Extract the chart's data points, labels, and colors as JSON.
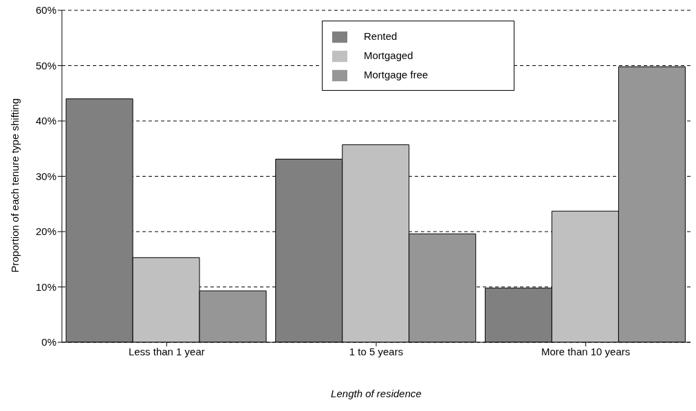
{
  "chart_data": {
    "type": "bar",
    "xlabel": "Length of residence",
    "ylabel": "Proportion of each tenure type shifting",
    "categories": [
      "Less than 1 year",
      "1 to 5 years",
      "More than 10 years"
    ],
    "series": [
      {
        "name": "Rented",
        "color": "#808080",
        "values": [
          44,
          33.1,
          9.8
        ]
      },
      {
        "name": "Mortgaged",
        "color": "#c0c0c0",
        "values": [
          15.3,
          35.7,
          23.7
        ]
      },
      {
        "name": "Mortgage free",
        "color": "#969696",
        "values": [
          9.3,
          19.6,
          49.8
        ]
      }
    ],
    "ylim": [
      0,
      60
    ],
    "yticks": [
      {
        "value": 0,
        "label": "0%"
      },
      {
        "value": 10,
        "label": "10%"
      },
      {
        "value": 20,
        "label": "20%"
      },
      {
        "value": 30,
        "label": "30%"
      },
      {
        "value": 40,
        "label": "40%"
      },
      {
        "value": 50,
        "label": "50%"
      },
      {
        "value": 60,
        "label": "60%"
      }
    ],
    "grid": "y",
    "legend": "top"
  }
}
